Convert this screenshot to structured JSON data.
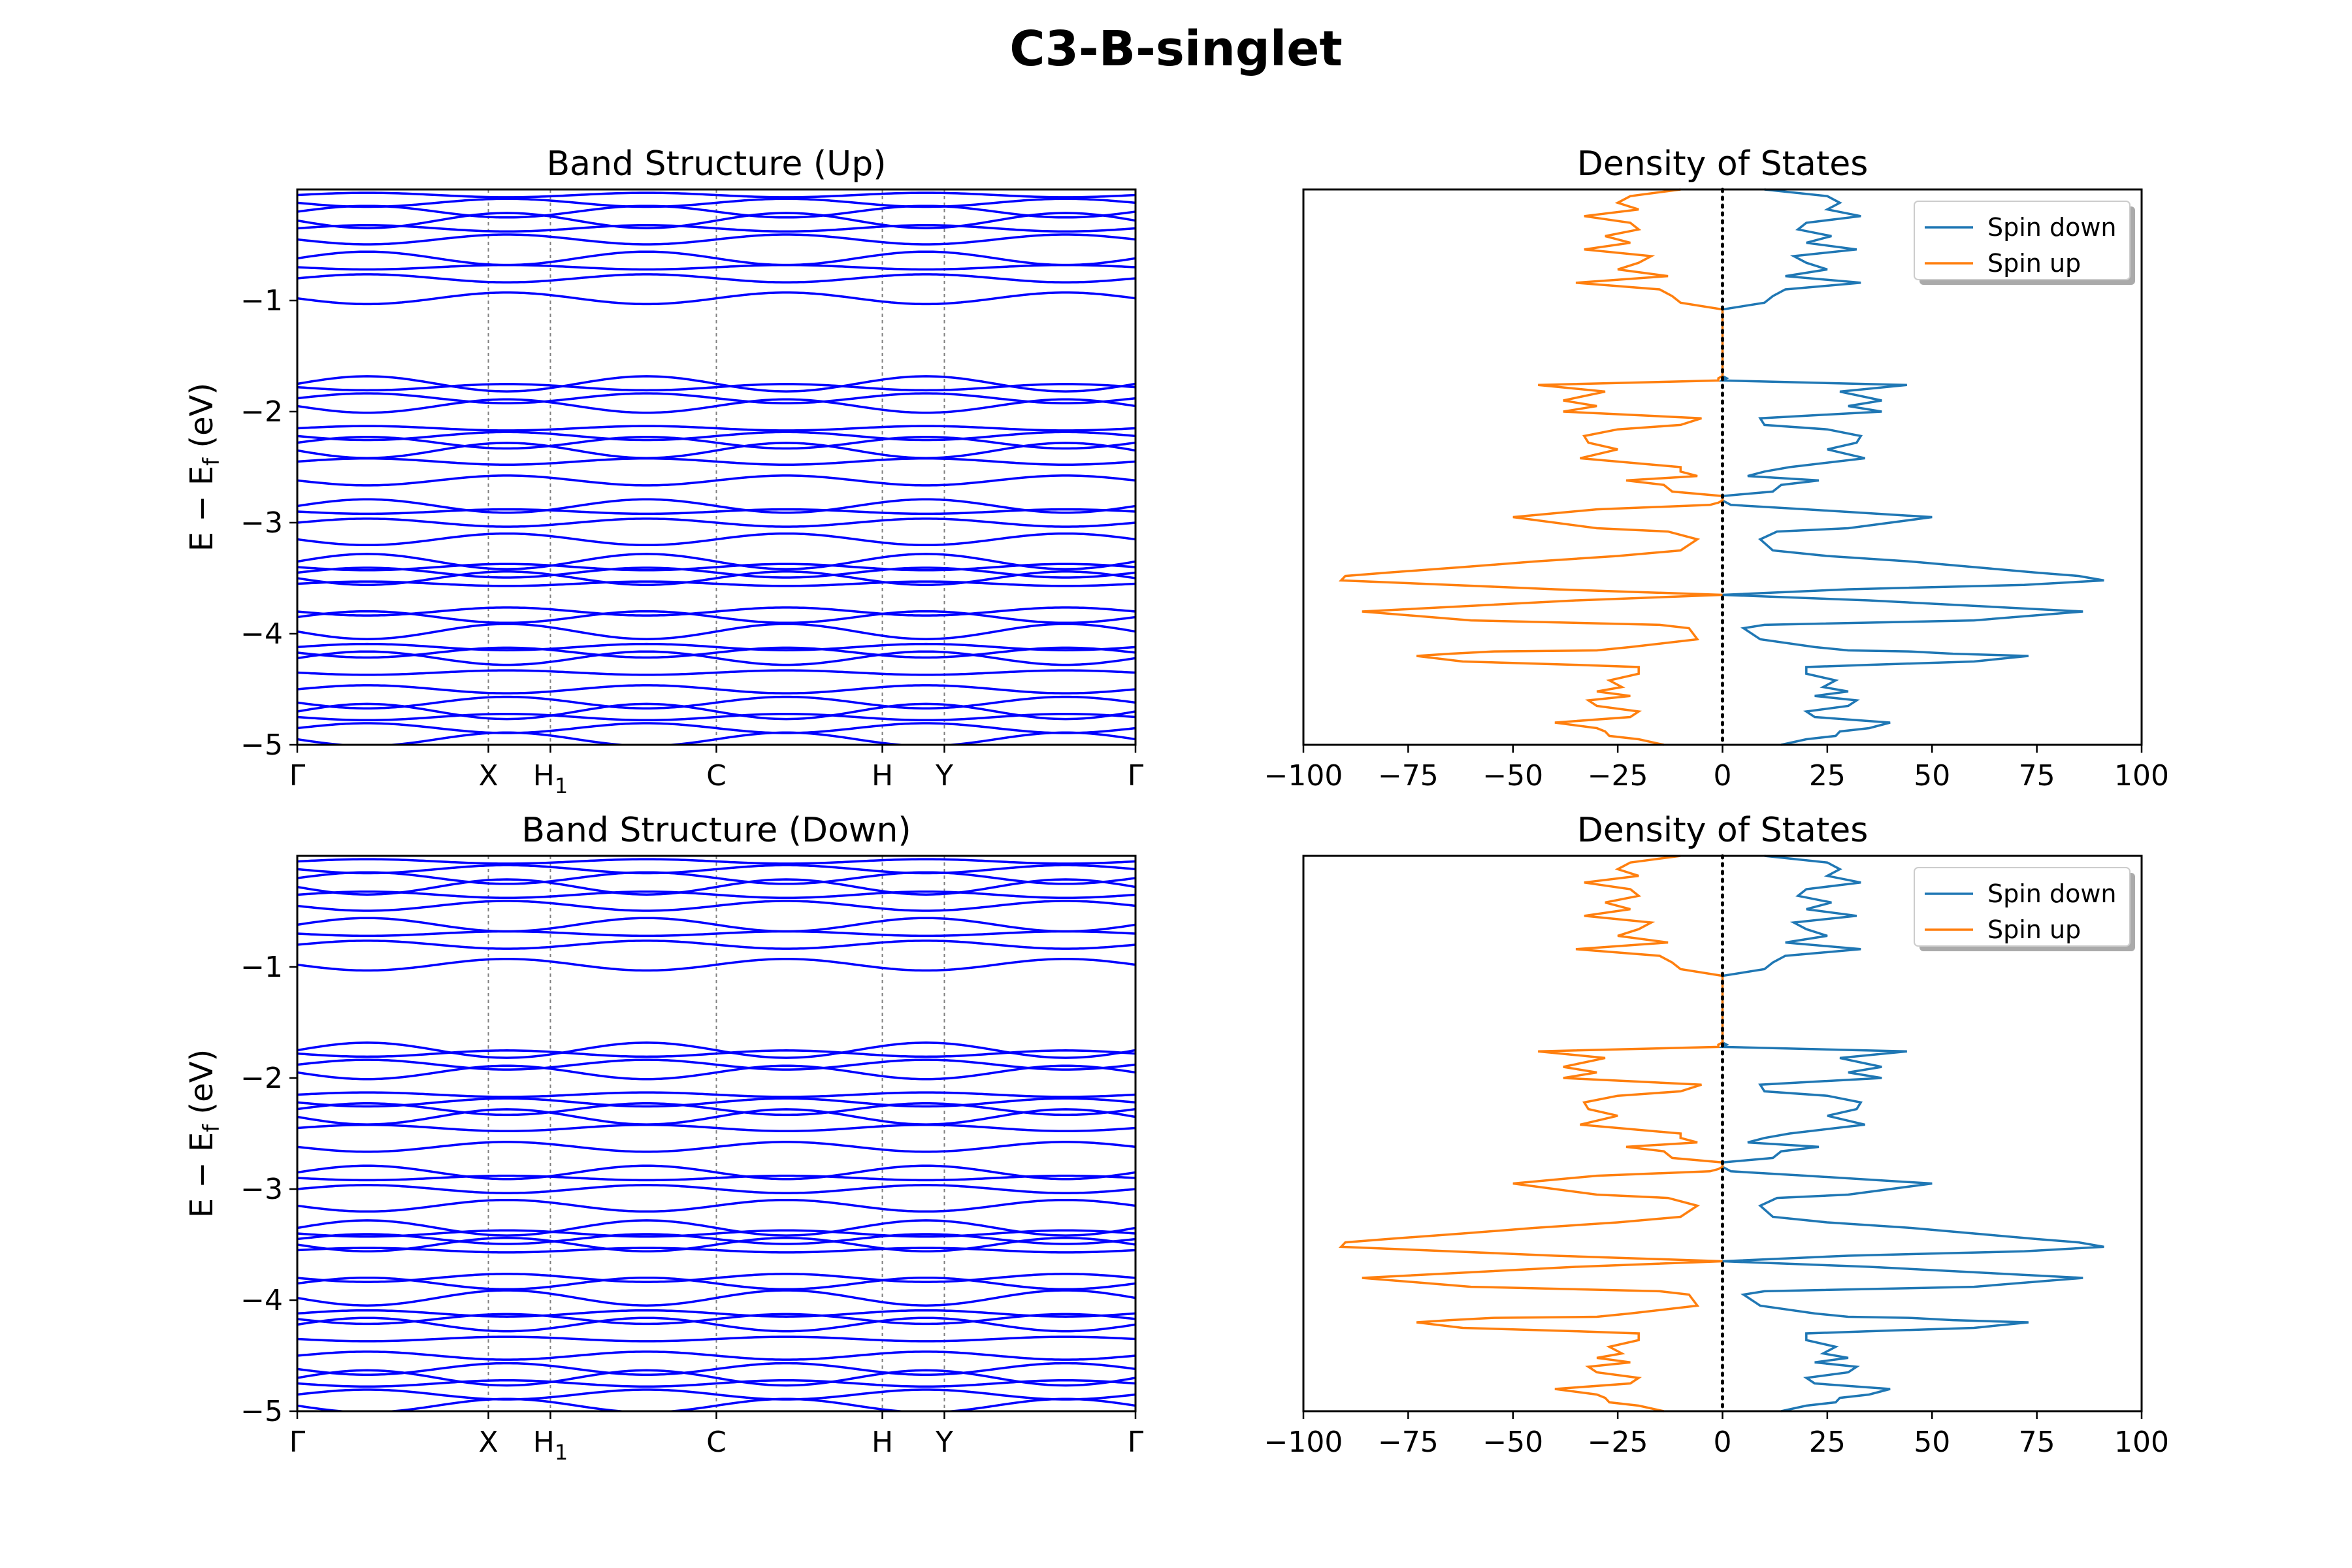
{
  "figure": {
    "title": "C3-B-singlet"
  },
  "colors": {
    "bands": "#0000ff",
    "spin_down": "#1f77b4",
    "spin_up": "#ff7f0e",
    "fermi_line": "#000000",
    "kpath_line": "#808080"
  },
  "chart_data": [
    {
      "type": "line",
      "title": "Band Structure (Up)",
      "xlabel": "",
      "ylabel_parts": [
        "E − E",
        "f",
        " (eV)"
      ],
      "ylim": [
        -5,
        0
      ],
      "yticks": [
        -1,
        -2,
        -3,
        -4,
        -5
      ],
      "ytick_labels": [
        "−1",
        "−2",
        "−3",
        "−4",
        "−5"
      ],
      "kpath_labels": [
        "Γ",
        "X",
        "H",
        "C",
        "H",
        "Y",
        "Γ"
      ],
      "kpath_label_subscripts": [
        "",
        "",
        "1",
        "",
        "",
        "",
        ""
      ],
      "kpath_positions": [
        0,
        0.228,
        0.302,
        0.5,
        0.698,
        0.772,
        1
      ],
      "grid": false,
      "band_levels_approx": [
        -0.05,
        -0.12,
        -0.2,
        -0.28,
        -0.35,
        -0.45,
        -0.62,
        -0.7,
        -0.8,
        -0.98,
        -1.75,
        -1.78,
        -1.88,
        -1.95,
        -2.15,
        -2.22,
        -2.28,
        -2.35,
        -2.45,
        -2.62,
        -2.85,
        -2.9,
        -3.0,
        -3.15,
        -3.35,
        -3.4,
        -3.45,
        -3.5,
        -3.55,
        -3.8,
        -3.85,
        -3.98,
        -4.12,
        -4.17,
        -4.22,
        -4.35,
        -4.5,
        -4.62,
        -4.7,
        -4.75,
        -4.85,
        -4.95
      ]
    },
    {
      "type": "line",
      "title": "Density of States",
      "xlabel": "",
      "ylabel": "",
      "xlim": [
        -100,
        100
      ],
      "ylim": [
        -5,
        0
      ],
      "xticks": [
        -100,
        -75,
        -50,
        -25,
        0,
        25,
        50,
        75,
        100
      ],
      "xtick_labels": [
        "−100",
        "−75",
        "−50",
        "−25",
        "0",
        "25",
        "50",
        "75",
        "100"
      ],
      "legend_position": "top-right",
      "series": [
        {
          "name": "Spin down",
          "x": [
            10,
            25,
            28,
            25,
            33,
            20,
            18,
            26,
            20,
            32,
            17,
            20,
            25,
            15,
            33,
            15,
            12,
            10,
            0,
            0,
            0,
            0,
            0,
            0,
            0,
            0,
            0,
            0,
            0,
            0,
            0,
            0,
            0,
            1,
            0,
            44,
            28,
            38,
            30,
            38,
            9,
            10,
            25,
            33,
            32,
            25,
            34,
            16,
            10,
            6,
            23,
            14,
            12,
            0,
            0,
            1,
            2,
            20,
            50,
            30,
            13,
            9,
            12,
            25,
            45,
            60,
            75,
            85,
            91,
            72,
            30,
            0,
            35,
            86,
            60,
            10,
            5,
            9,
            22,
            30,
            45,
            55,
            73,
            60,
            35,
            20,
            20,
            27,
            24,
            30,
            22,
            32,
            30,
            20,
            22,
            40,
            35,
            28,
            27,
            20,
            14
          ],
          "y": [
            0,
            -0.06,
            -0.12,
            -0.18,
            -0.24,
            -0.3,
            -0.36,
            -0.42,
            -0.48,
            -0.54,
            -0.6,
            -0.66,
            -0.72,
            -0.78,
            -0.84,
            -0.9,
            -0.96,
            -1.02,
            -1.08,
            -1.14,
            -1.2,
            -1.26,
            -1.32,
            -1.38,
            -1.44,
            -1.5,
            -1.56,
            -1.6,
            -1.62,
            -1.64,
            -1.65,
            -1.66,
            -1.68,
            -1.7,
            -1.72,
            -1.76,
            -1.82,
            -1.9,
            -1.95,
            -2.0,
            -2.06,
            -2.12,
            -2.16,
            -2.22,
            -2.28,
            -2.34,
            -2.42,
            -2.5,
            -2.54,
            -2.58,
            -2.62,
            -2.66,
            -2.72,
            -2.76,
            -2.8,
            -2.82,
            -2.84,
            -2.88,
            -2.95,
            -3.05,
            -3.08,
            -3.15,
            -3.25,
            -3.3,
            -3.35,
            -3.4,
            -3.45,
            -3.48,
            -3.52,
            -3.56,
            -3.6,
            -3.65,
            -3.7,
            -3.8,
            -3.88,
            -3.92,
            -3.95,
            -4.05,
            -4.12,
            -4.15,
            -4.16,
            -4.18,
            -4.2,
            -4.25,
            -4.28,
            -4.3,
            -4.36,
            -4.42,
            -4.48,
            -4.52,
            -4.56,
            -4.6,
            -4.65,
            -4.7,
            -4.75,
            -4.8,
            -4.85,
            -4.88,
            -4.92,
            -4.95,
            -5.0
          ]
        },
        {
          "name": "Spin up",
          "x": [
            -10,
            -22,
            -25,
            -20,
            -33,
            -22,
            -20,
            -28,
            -22,
            -33,
            -17,
            -20,
            -25,
            -13,
            -35,
            -15,
            -12,
            -10,
            0,
            0,
            0,
            0,
            0,
            0,
            0,
            0,
            0,
            0,
            0,
            0,
            0,
            0,
            0,
            -1,
            -1,
            -44,
            -28,
            -38,
            -30,
            -38,
            -5,
            -10,
            -25,
            -33,
            -32,
            -25,
            -34,
            -10,
            -10,
            -6,
            -23,
            -14,
            -12,
            0,
            0,
            -1,
            -3,
            -30,
            -50,
            -30,
            -13,
            -6,
            -10,
            -25,
            -45,
            -62,
            -80,
            -90,
            -91,
            -65,
            -40,
            0,
            -35,
            -86,
            -60,
            -15,
            -8,
            -6,
            -22,
            -30,
            -55,
            -65,
            -73,
            -62,
            -35,
            -20,
            -20,
            -27,
            -24,
            -30,
            -22,
            -32,
            -30,
            -20,
            -22,
            -40,
            -30,
            -28,
            -27,
            -20,
            -14
          ],
          "y": [
            0,
            -0.06,
            -0.12,
            -0.18,
            -0.24,
            -0.3,
            -0.36,
            -0.42,
            -0.48,
            -0.54,
            -0.6,
            -0.66,
            -0.72,
            -0.78,
            -0.84,
            -0.9,
            -0.96,
            -1.02,
            -1.08,
            -1.14,
            -1.2,
            -1.26,
            -1.32,
            -1.38,
            -1.44,
            -1.5,
            -1.56,
            -1.6,
            -1.62,
            -1.64,
            -1.65,
            -1.66,
            -1.68,
            -1.7,
            -1.72,
            -1.76,
            -1.82,
            -1.9,
            -1.95,
            -2.0,
            -2.06,
            -2.12,
            -2.16,
            -2.22,
            -2.28,
            -2.34,
            -2.42,
            -2.5,
            -2.54,
            -2.58,
            -2.62,
            -2.66,
            -2.72,
            -2.76,
            -2.8,
            -2.82,
            -2.84,
            -2.88,
            -2.95,
            -3.05,
            -3.08,
            -3.15,
            -3.25,
            -3.3,
            -3.35,
            -3.4,
            -3.45,
            -3.48,
            -3.52,
            -3.56,
            -3.6,
            -3.65,
            -3.7,
            -3.8,
            -3.88,
            -3.92,
            -3.95,
            -4.05,
            -4.12,
            -4.15,
            -4.16,
            -4.18,
            -4.2,
            -4.25,
            -4.28,
            -4.3,
            -4.36,
            -4.42,
            -4.48,
            -4.52,
            -4.56,
            -4.6,
            -4.65,
            -4.7,
            -4.75,
            -4.8,
            -4.85,
            -4.88,
            -4.92,
            -4.95,
            -5.0
          ]
        }
      ]
    },
    {
      "type": "line",
      "title": "Band Structure (Down)",
      "xlabel": "",
      "ylabel_parts": [
        "E − E",
        "f",
        " (eV)"
      ],
      "ylim": [
        -5,
        0
      ],
      "yticks": [
        -1,
        -2,
        -3,
        -4,
        -5
      ],
      "ytick_labels": [
        "−1",
        "−2",
        "−3",
        "−4",
        "−5"
      ],
      "kpath_labels": [
        "Γ",
        "X",
        "H",
        "C",
        "H",
        "Y",
        "Γ"
      ],
      "kpath_label_subscripts": [
        "",
        "",
        "1",
        "",
        "",
        "",
        ""
      ],
      "kpath_positions": [
        0,
        0.228,
        0.302,
        0.5,
        0.698,
        0.772,
        1
      ],
      "grid": false,
      "band_levels_approx": [
        -0.05,
        -0.12,
        -0.2,
        -0.28,
        -0.35,
        -0.45,
        -0.62,
        -0.7,
        -0.8,
        -0.98,
        -1.75,
        -1.78,
        -1.88,
        -1.95,
        -2.15,
        -2.22,
        -2.28,
        -2.35,
        -2.45,
        -2.62,
        -2.85,
        -2.9,
        -3.0,
        -3.15,
        -3.35,
        -3.4,
        -3.45,
        -3.5,
        -3.55,
        -3.8,
        -3.85,
        -3.98,
        -4.12,
        -4.17,
        -4.22,
        -4.35,
        -4.5,
        -4.62,
        -4.7,
        -4.75,
        -4.85,
        -4.95
      ]
    },
    {
      "type": "line",
      "title": "Density of States",
      "xlabel": "",
      "ylabel": "",
      "xlim": [
        -100,
        100
      ],
      "ylim": [
        -5,
        0
      ],
      "xticks": [
        -100,
        -75,
        -50,
        -25,
        0,
        25,
        50,
        75,
        100
      ],
      "xtick_labels": [
        "−100",
        "−75",
        "−50",
        "−25",
        "0",
        "25",
        "50",
        "75",
        "100"
      ],
      "legend_position": "top-right",
      "series": [
        {
          "name": "Spin down",
          "x": [
            10,
            25,
            28,
            25,
            33,
            20,
            18,
            26,
            20,
            32,
            17,
            20,
            25,
            15,
            33,
            15,
            12,
            10,
            0,
            0,
            0,
            0,
            0,
            0,
            0,
            0,
            0,
            0,
            0,
            0,
            0,
            0,
            0,
            1,
            0,
            44,
            28,
            38,
            30,
            38,
            9,
            10,
            25,
            33,
            32,
            25,
            34,
            16,
            10,
            6,
            23,
            14,
            12,
            0,
            0,
            1,
            2,
            20,
            50,
            30,
            13,
            9,
            12,
            25,
            45,
            60,
            75,
            85,
            91,
            72,
            30,
            0,
            35,
            86,
            60,
            10,
            5,
            9,
            22,
            30,
            45,
            55,
            73,
            60,
            35,
            20,
            20,
            27,
            24,
            30,
            22,
            32,
            30,
            20,
            22,
            40,
            35,
            28,
            27,
            20,
            14
          ],
          "y": [
            0,
            -0.06,
            -0.12,
            -0.18,
            -0.24,
            -0.3,
            -0.36,
            -0.42,
            -0.48,
            -0.54,
            -0.6,
            -0.66,
            -0.72,
            -0.78,
            -0.84,
            -0.9,
            -0.96,
            -1.02,
            -1.08,
            -1.14,
            -1.2,
            -1.26,
            -1.32,
            -1.38,
            -1.44,
            -1.5,
            -1.56,
            -1.6,
            -1.62,
            -1.64,
            -1.65,
            -1.66,
            -1.68,
            -1.7,
            -1.72,
            -1.76,
            -1.82,
            -1.9,
            -1.95,
            -2.0,
            -2.06,
            -2.12,
            -2.16,
            -2.22,
            -2.28,
            -2.34,
            -2.42,
            -2.5,
            -2.54,
            -2.58,
            -2.62,
            -2.66,
            -2.72,
            -2.76,
            -2.8,
            -2.82,
            -2.84,
            -2.88,
            -2.95,
            -3.05,
            -3.08,
            -3.15,
            -3.25,
            -3.3,
            -3.35,
            -3.4,
            -3.45,
            -3.48,
            -3.52,
            -3.56,
            -3.6,
            -3.65,
            -3.7,
            -3.8,
            -3.88,
            -3.92,
            -3.95,
            -4.05,
            -4.12,
            -4.15,
            -4.16,
            -4.18,
            -4.2,
            -4.25,
            -4.28,
            -4.3,
            -4.36,
            -4.42,
            -4.48,
            -4.52,
            -4.56,
            -4.6,
            -4.65,
            -4.7,
            -4.75,
            -4.8,
            -4.85,
            -4.88,
            -4.92,
            -4.95,
            -5.0
          ]
        },
        {
          "name": "Spin up",
          "x": [
            -10,
            -22,
            -25,
            -20,
            -33,
            -22,
            -20,
            -28,
            -22,
            -33,
            -17,
            -20,
            -25,
            -13,
            -35,
            -15,
            -12,
            -10,
            0,
            0,
            0,
            0,
            0,
            0,
            0,
            0,
            0,
            0,
            0,
            0,
            0,
            0,
            0,
            -1,
            -1,
            -44,
            -28,
            -38,
            -30,
            -38,
            -5,
            -10,
            -25,
            -33,
            -32,
            -25,
            -34,
            -10,
            -10,
            -6,
            -23,
            -14,
            -12,
            0,
            0,
            -1,
            -3,
            -30,
            -50,
            -30,
            -13,
            -6,
            -10,
            -25,
            -45,
            -62,
            -80,
            -90,
            -91,
            -65,
            -40,
            0,
            -35,
            -86,
            -60,
            -15,
            -8,
            -6,
            -22,
            -30,
            -55,
            -65,
            -73,
            -62,
            -35,
            -20,
            -20,
            -27,
            -24,
            -30,
            -22,
            -32,
            -30,
            -20,
            -22,
            -40,
            -30,
            -28,
            -27,
            -20,
            -14
          ],
          "y": [
            0,
            -0.06,
            -0.12,
            -0.18,
            -0.24,
            -0.3,
            -0.36,
            -0.42,
            -0.48,
            -0.54,
            -0.6,
            -0.66,
            -0.72,
            -0.78,
            -0.84,
            -0.9,
            -0.96,
            -1.02,
            -1.08,
            -1.14,
            -1.2,
            -1.26,
            -1.32,
            -1.38,
            -1.44,
            -1.5,
            -1.56,
            -1.6,
            -1.62,
            -1.64,
            -1.65,
            -1.66,
            -1.68,
            -1.7,
            -1.72,
            -1.76,
            -1.82,
            -1.9,
            -1.95,
            -2.0,
            -2.06,
            -2.12,
            -2.16,
            -2.22,
            -2.28,
            -2.34,
            -2.42,
            -2.5,
            -2.54,
            -2.58,
            -2.62,
            -2.66,
            -2.72,
            -2.76,
            -2.8,
            -2.82,
            -2.84,
            -2.88,
            -2.95,
            -3.05,
            -3.08,
            -3.15,
            -3.25,
            -3.3,
            -3.35,
            -3.4,
            -3.45,
            -3.48,
            -3.52,
            -3.56,
            -3.6,
            -3.65,
            -3.7,
            -3.8,
            -3.88,
            -3.92,
            -3.95,
            -4.05,
            -4.12,
            -4.15,
            -4.16,
            -4.18,
            -4.2,
            -4.25,
            -4.28,
            -4.3,
            -4.36,
            -4.42,
            -4.48,
            -4.52,
            -4.56,
            -4.6,
            -4.65,
            -4.7,
            -4.75,
            -4.8,
            -4.85,
            -4.88,
            -4.92,
            -4.95,
            -5.0
          ]
        }
      ]
    }
  ]
}
